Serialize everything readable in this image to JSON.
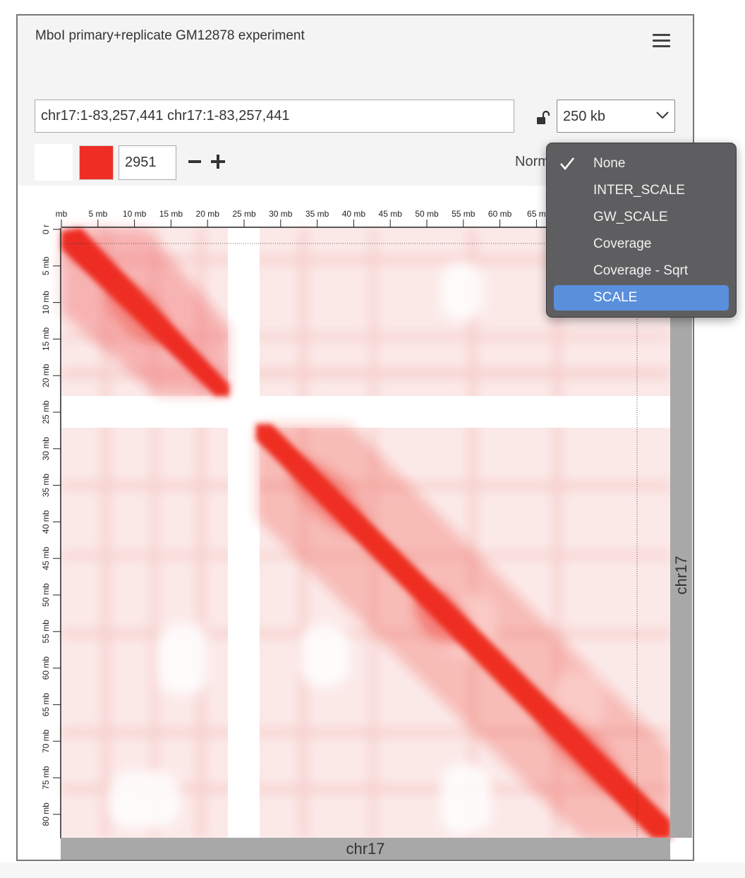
{
  "panel": {
    "title": "MboI primary+replicate GM12878 experiment"
  },
  "controls": {
    "locus_value": "chr17:1-83,257,441 chr17:1-83,257,441",
    "resolution": "250 kb",
    "color_score": "2951",
    "normalization_label": "Norm"
  },
  "colors": {
    "contact_red": "#ee2e24",
    "axis_gray": "#a8a8a8",
    "menu_bg": "#5e5d5f",
    "menu_highlight": "#5a8fdc"
  },
  "axes": {
    "x_chromosome": "chr17",
    "y_chromosome": "chr17",
    "x_ticks": [
      "mb",
      "5 mb",
      "10 mb",
      "15 mb",
      "20 mb",
      "25 mb",
      "30 mb",
      "35 mb",
      "40 mb",
      "45 mb",
      "50 mb",
      "55 mb",
      "60 mb",
      "65 m"
    ],
    "y_ticks": [
      "0 r",
      "5 mb",
      "10 mb",
      "15 mb",
      "20 mb",
      "25 mb",
      "30 mb",
      "35 mb",
      "40 mb",
      "45 mb",
      "50 mb",
      "55 mb",
      "60 mb",
      "65 mb",
      "70 mb",
      "75 mb",
      "80 mb"
    ]
  },
  "norm_menu": {
    "items": [
      {
        "label": "None",
        "checked": true,
        "highlighted": false
      },
      {
        "label": "INTER_SCALE",
        "checked": false,
        "highlighted": false
      },
      {
        "label": "GW_SCALE",
        "checked": false,
        "highlighted": false
      },
      {
        "label": "Coverage",
        "checked": false,
        "highlighted": false
      },
      {
        "label": "Coverage - Sqrt",
        "checked": false,
        "highlighted": false
      },
      {
        "label": "SCALE",
        "checked": false,
        "highlighted": true
      }
    ]
  },
  "icons": {
    "menu": "hamburger-icon",
    "lock": "unlock-icon",
    "dropdown": "chevron-down-icon",
    "check": "checkmark-icon"
  }
}
